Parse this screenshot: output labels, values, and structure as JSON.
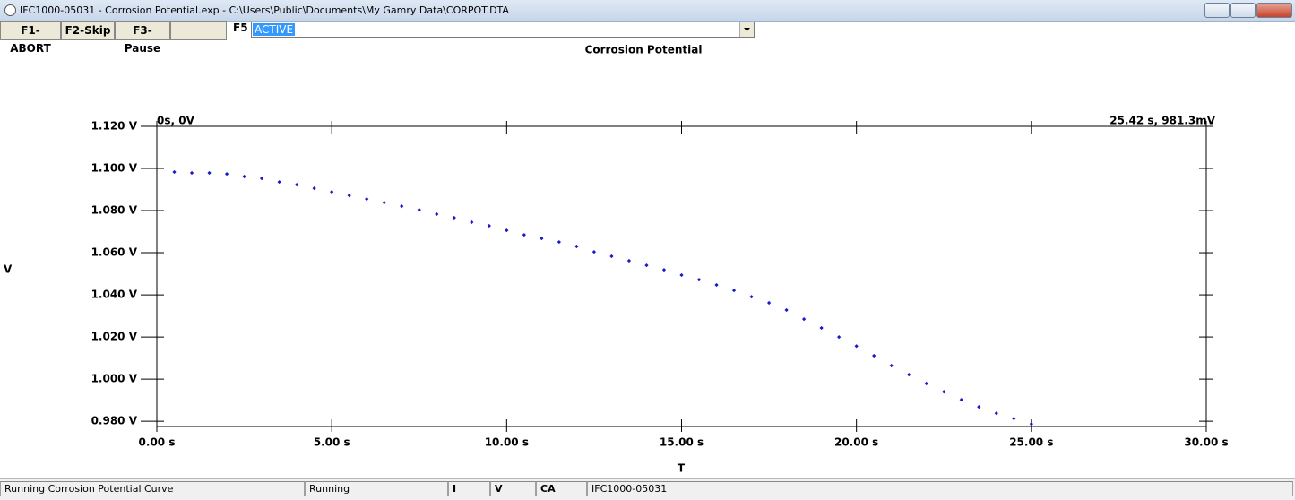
{
  "window": {
    "title": "IFC1000-05031 - Corrosion Potential.exp - C:\\Users\\Public\\Documents\\My Gamry Data\\CORPOT.DTA"
  },
  "toolbar": {
    "buttons": [
      "F1-ABORT",
      "F2-Skip",
      "F3-Pause"
    ],
    "f5_label": "F5",
    "dropdown_value": "ACTIVE"
  },
  "status_bar": [
    "Running Corrosion Potential Curve",
    "Running",
    "I",
    "V",
    "CA",
    "IFC1000-05031"
  ],
  "chart_data": {
    "type": "scatter",
    "title": "Corrosion Potential",
    "x_label": "T",
    "y_label": "V",
    "annotations": [
      "0s, 0V",
      "25.42 s, 981.3mV"
    ],
    "color": "#1a1acc",
    "x": [
      0.5,
      1.0,
      1.5,
      2.0,
      2.5,
      3.0,
      3.5,
      4.0,
      4.5,
      5.0,
      5.5,
      6.0,
      6.5,
      7.0,
      7.5,
      8.0,
      8.5,
      9.0,
      9.5,
      10.0,
      10.5,
      11.0,
      11.5,
      12.0,
      12.5,
      13.0,
      13.5,
      14.0,
      14.5,
      15.0,
      15.5,
      16.0,
      16.5,
      17.0,
      17.5,
      18.0,
      18.5,
      19.0,
      19.5,
      20.0,
      20.5,
      21.0,
      21.5,
      22.0,
      22.5,
      23.0,
      23.5,
      24.0,
      24.5,
      25.0
    ],
    "values": [
      1.0983,
      1.0979,
      1.0979,
      1.0974,
      1.0962,
      1.0953,
      1.0936,
      1.0923,
      1.0906,
      1.0889,
      1.0872,
      1.0855,
      1.0838,
      1.0821,
      1.0804,
      1.0783,
      1.0766,
      1.0745,
      1.0728,
      1.0706,
      1.0685,
      1.0668,
      1.0651,
      1.063,
      1.0604,
      1.0583,
      1.0562,
      1.054,
      1.0519,
      1.0494,
      1.0472,
      1.0447,
      1.0421,
      1.0391,
      1.0362,
      1.0328,
      1.0285,
      1.0243,
      1.02,
      1.0157,
      1.0111,
      1.0064,
      1.0021,
      0.9979,
      0.994,
      0.9902,
      0.9868,
      0.9838,
      0.9813,
      0.9787
    ],
    "xlim": [
      0,
      30
    ],
    "xticks": [
      {
        "value": 0,
        "label": "0.00 s"
      },
      {
        "value": 5,
        "label": "5.00 s"
      },
      {
        "value": 10,
        "label": "10.00 s"
      },
      {
        "value": 15,
        "label": "15.00 s"
      },
      {
        "value": 20,
        "label": "20.00 s"
      },
      {
        "value": 25,
        "label": "25.00 s"
      },
      {
        "value": 30,
        "label": "30.00 s"
      }
    ],
    "ylim": [
      0.9775,
      1.12
    ],
    "yticks": [
      {
        "value": 0.98,
        "label": "0.980 V"
      },
      {
        "value": 1.0,
        "label": "1.000 V"
      },
      {
        "value": 1.02,
        "label": "1.020 V"
      },
      {
        "value": 1.04,
        "label": "1.040 V"
      },
      {
        "value": 1.06,
        "label": "1.060 V"
      },
      {
        "value": 1.08,
        "label": "1.080 V"
      },
      {
        "value": 1.1,
        "label": "1.100 V"
      },
      {
        "value": 1.12,
        "label": "1.120 V"
      }
    ]
  }
}
